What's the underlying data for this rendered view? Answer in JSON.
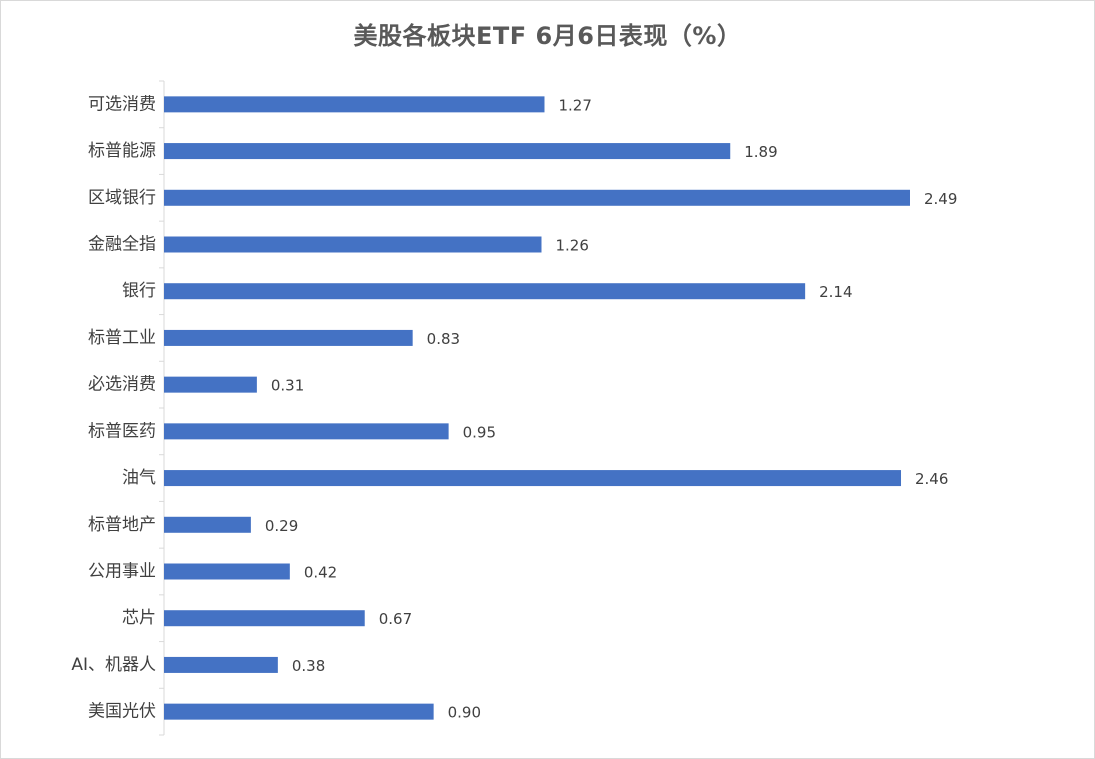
{
  "chart_data": {
    "type": "bar",
    "orientation": "horizontal",
    "title": "美股各板块ETF  6月6日表现（%）",
    "categories": [
      "可选消费",
      "标普能源",
      "区域银行",
      "金融全指",
      "银行",
      "标普工业",
      "必选消费",
      "标普医药",
      "油气",
      "标普地产",
      "公用事业",
      "芯片",
      "AI、机器人",
      "美国光伏"
    ],
    "values": [
      1.27,
      1.89,
      2.49,
      1.26,
      2.14,
      0.83,
      0.31,
      0.95,
      2.46,
      0.29,
      0.42,
      0.67,
      0.38,
      0.9
    ],
    "value_labels": [
      "1.27",
      "1.89",
      "2.49",
      "1.26",
      "2.14",
      "0.83",
      "0.31",
      "0.95",
      "2.46",
      "0.29",
      "0.42",
      "0.67",
      "0.38",
      "0.90"
    ],
    "bar_color": "#4472c4",
    "xlim": [
      0,
      2.5
    ],
    "grid": false,
    "legend": "none"
  }
}
